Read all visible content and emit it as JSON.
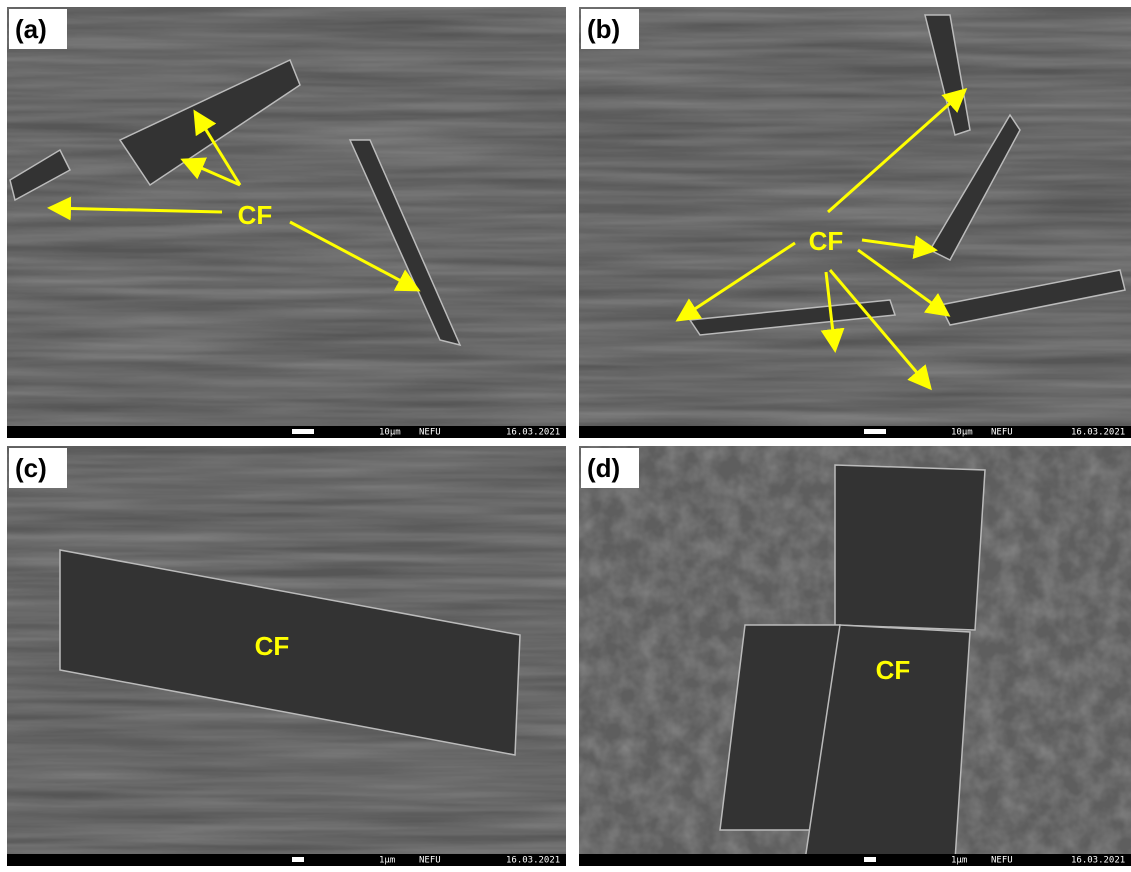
{
  "panels": [
    {
      "label": "(a)",
      "annotation": "CF",
      "scale": "10µm",
      "lab": "NEFU",
      "date": "16.03.2021"
    },
    {
      "label": "(b)",
      "annotation": "CF",
      "scale": "10µm",
      "lab": "NEFU",
      "date": "16.03.2021"
    },
    {
      "label": "(c)",
      "annotation": "CF",
      "scale": "1µm",
      "lab": "NEFU",
      "date": "16.03.2021"
    },
    {
      "label": "(d)",
      "annotation": "CF",
      "scale": "1µm",
      "lab": "NEFU",
      "date": "16.03.2021"
    }
  ]
}
